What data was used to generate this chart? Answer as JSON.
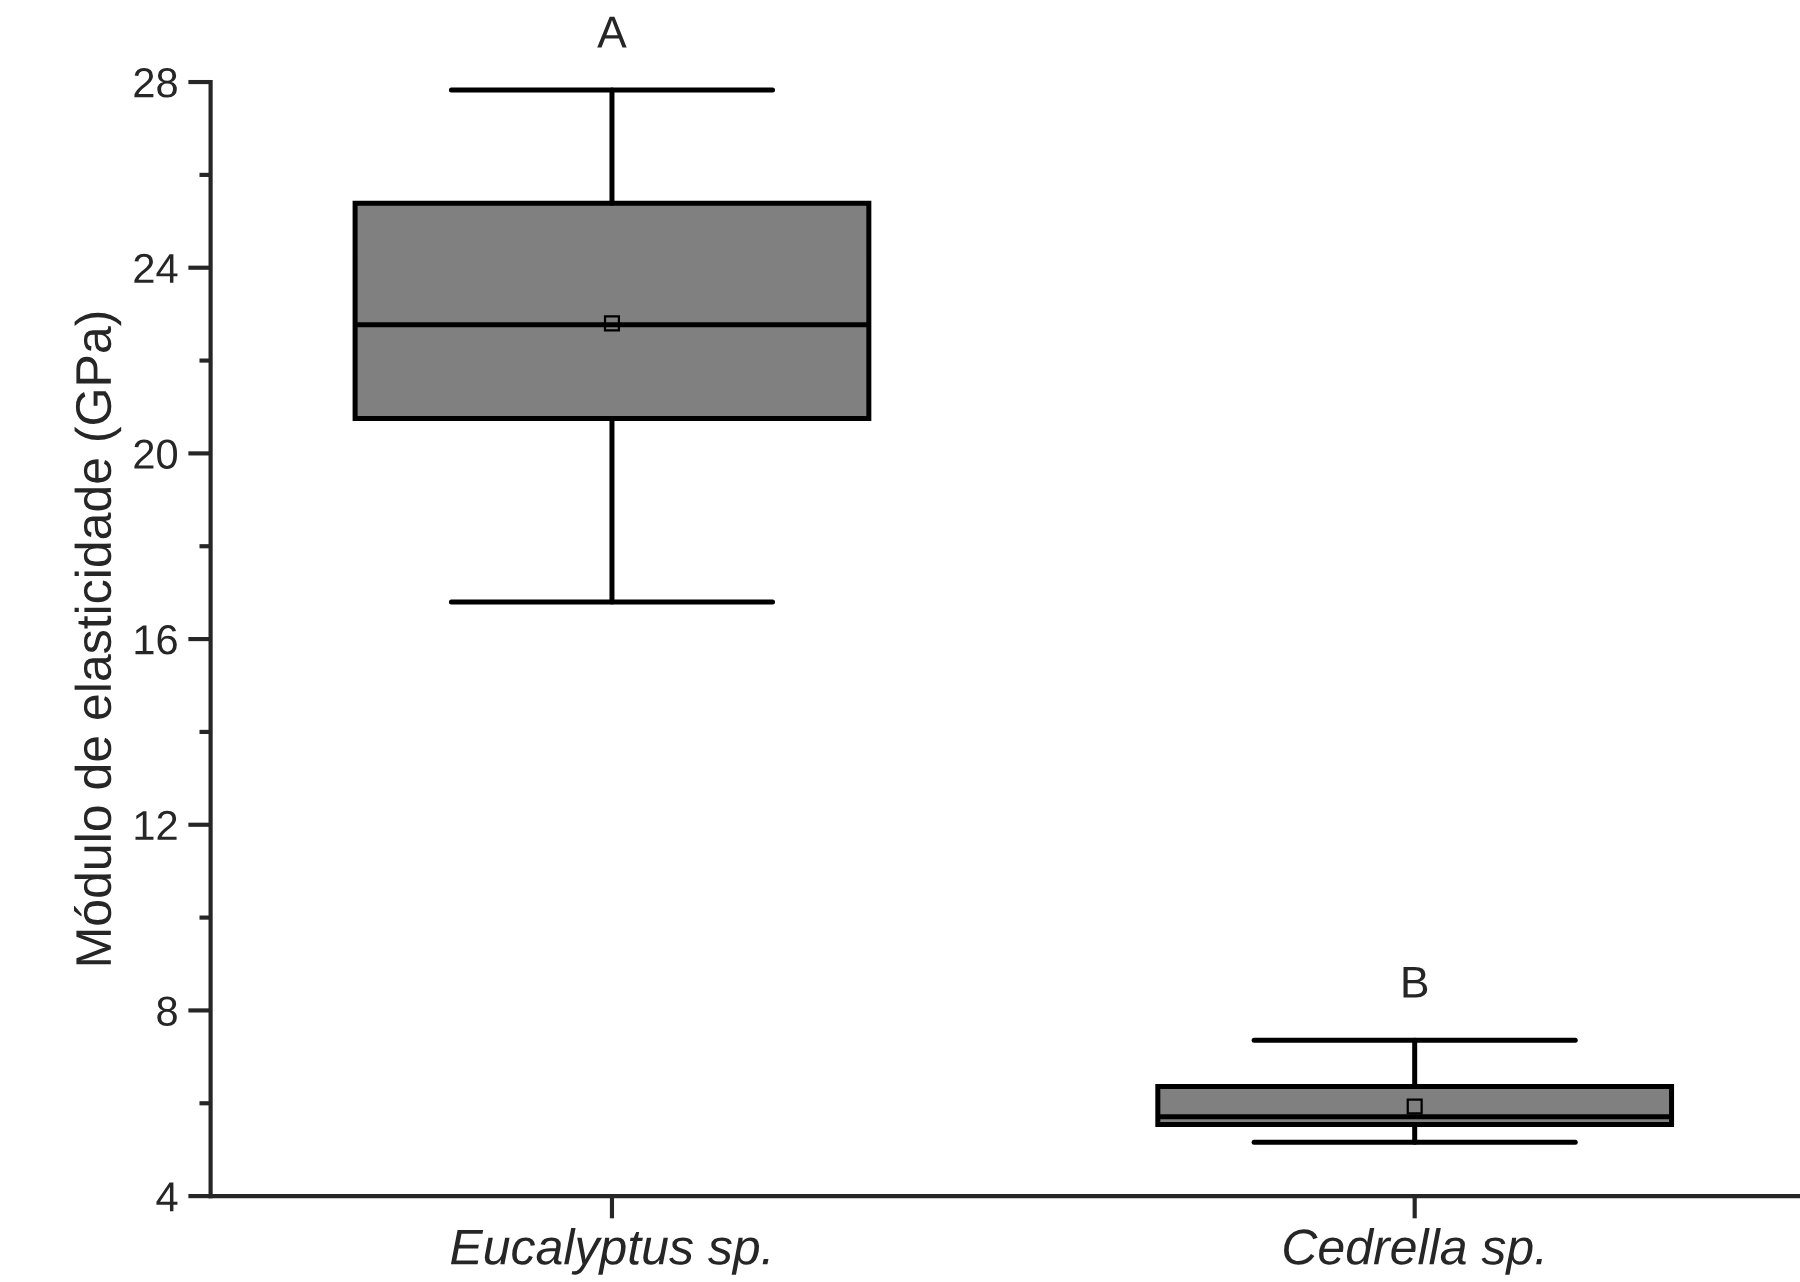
{
  "chart_data": {
    "type": "box",
    "ylabel": "Módulo de elasticidade (GPa)",
    "categories": [
      "Eucalyptus sp.",
      "Cedrella sp."
    ],
    "boxes": [
      {
        "low": 16.8,
        "q1": 20.75,
        "median": 22.77,
        "q3": 25.39,
        "high": 27.83,
        "mean": 22.8
      },
      {
        "low": 5.16,
        "q1": 5.54,
        "median": 5.71,
        "q3": 6.36,
        "high": 7.36,
        "mean": 5.93
      }
    ],
    "color": "#808080",
    "ylim": [
      4,
      28
    ],
    "yticks": [
      4,
      8,
      12,
      16,
      20,
      24,
      28
    ],
    "annotations": [
      "A",
      "B"
    ],
    "grid": false,
    "legend": false
  }
}
